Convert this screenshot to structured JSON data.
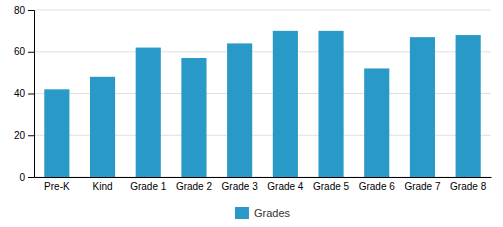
{
  "chart_data": {
    "type": "bar",
    "categories": [
      "Pre-K",
      "Kind",
      "Grade 1",
      "Grade 2",
      "Grade 3",
      "Grade 4",
      "Grade 5",
      "Grade 6",
      "Grade 7",
      "Grade 8"
    ],
    "series": [
      {
        "name": "Grades",
        "color": "#2999C8",
        "values": [
          42,
          48,
          62,
          57,
          64,
          70,
          70,
          52,
          67,
          68
        ]
      }
    ],
    "ylim": [
      0,
      80
    ],
    "yticks": [
      0,
      20,
      40,
      60,
      80
    ],
    "grid": true,
    "legend": "bottom"
  }
}
